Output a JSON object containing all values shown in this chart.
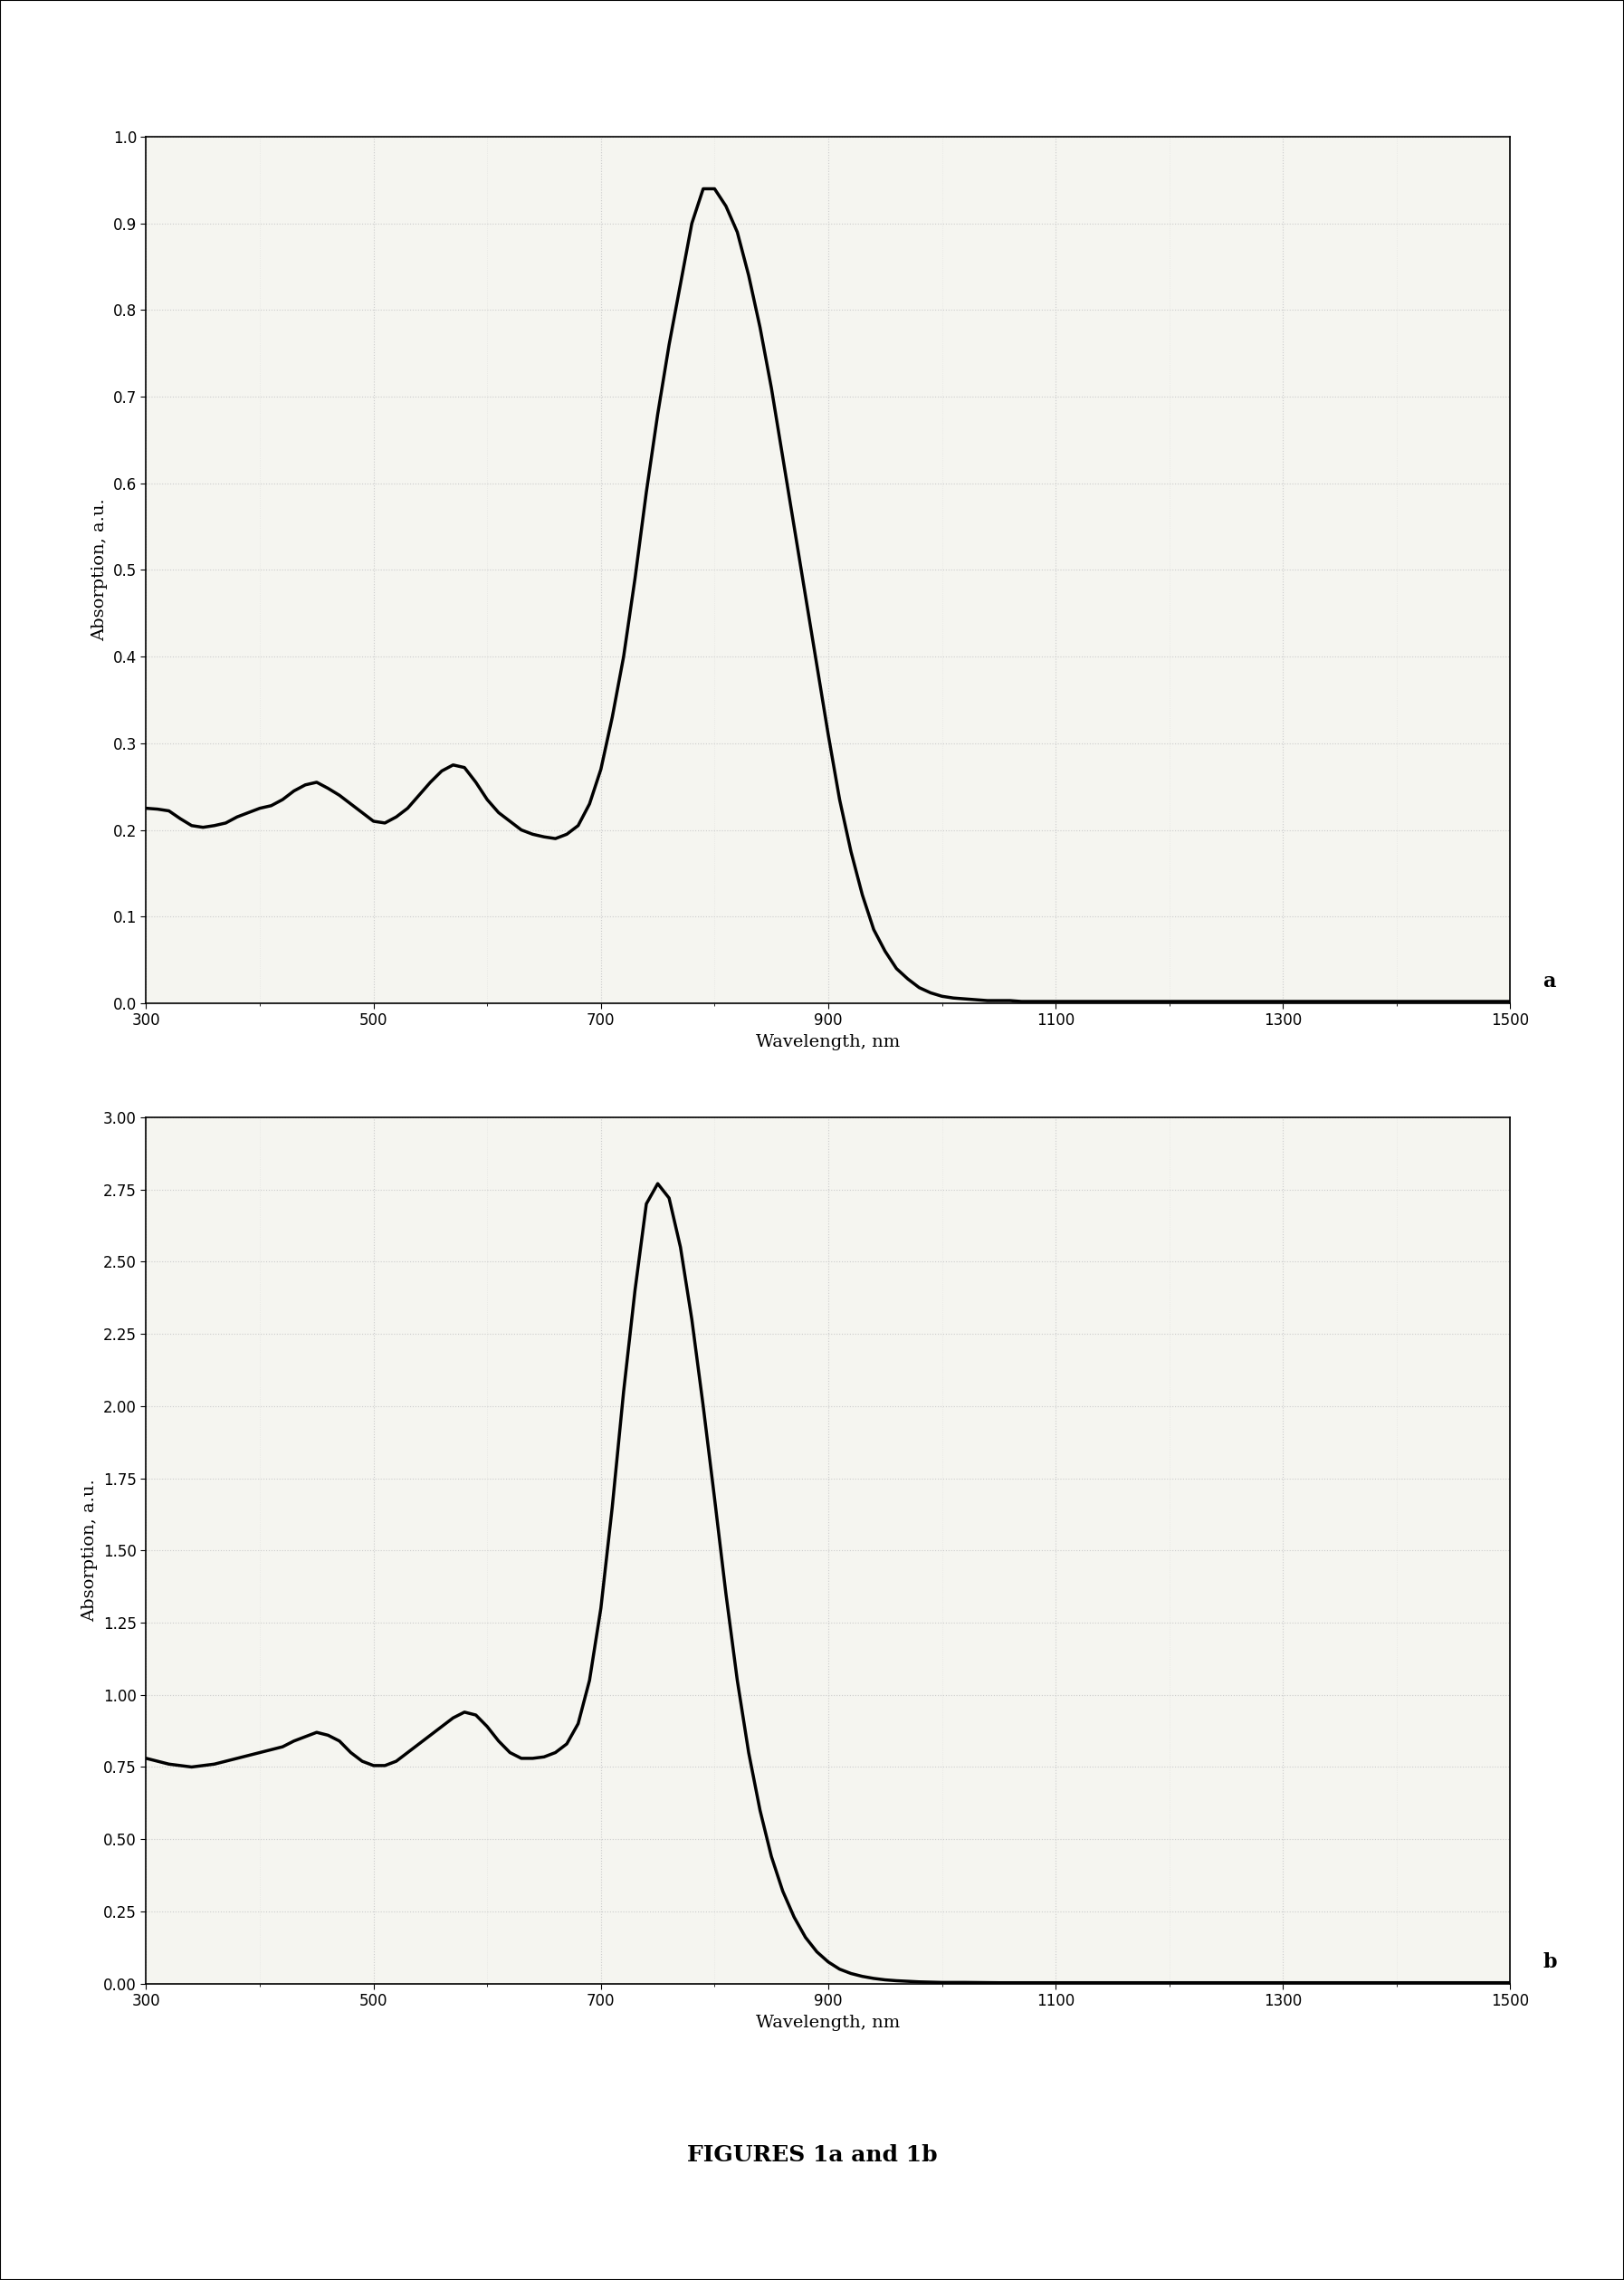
{
  "fig_width": 17.94,
  "fig_height": 25.18,
  "background_color": "#ffffff",
  "plot_bg_color": "#f5f5f0",
  "grid_color": "#cccccc",
  "line_color": "#000000",
  "line_width": 2.5,
  "figure_label": "FIGURES 1a and 1b",
  "label_a": "a",
  "label_b": "b",
  "chart1": {
    "xlabel": "Wavelength, nm",
    "ylabel": "Absorption, a.u.",
    "xlim": [
      300,
      1500
    ],
    "ylim": [
      0,
      1
    ],
    "xticks": [
      300,
      500,
      700,
      900,
      1100,
      1300,
      1500
    ],
    "yticks": [
      0,
      0.1,
      0.2,
      0.3,
      0.4,
      0.5,
      0.6,
      0.7,
      0.8,
      0.9,
      1.0
    ],
    "x": [
      300,
      310,
      320,
      330,
      340,
      350,
      360,
      370,
      380,
      390,
      400,
      410,
      420,
      430,
      440,
      450,
      460,
      470,
      480,
      490,
      500,
      510,
      520,
      530,
      540,
      550,
      560,
      570,
      580,
      590,
      600,
      610,
      620,
      630,
      640,
      650,
      660,
      670,
      680,
      690,
      700,
      710,
      720,
      730,
      740,
      750,
      760,
      770,
      780,
      790,
      800,
      810,
      820,
      830,
      840,
      850,
      860,
      870,
      880,
      890,
      900,
      910,
      920,
      930,
      940,
      950,
      960,
      970,
      980,
      990,
      1000,
      1010,
      1020,
      1030,
      1040,
      1050,
      1060,
      1070,
      1080,
      1090,
      1100,
      1110,
      1120,
      1130,
      1140,
      1150,
      1200,
      1300,
      1400,
      1500
    ],
    "y": [
      0.225,
      0.224,
      0.222,
      0.213,
      0.205,
      0.203,
      0.205,
      0.208,
      0.215,
      0.22,
      0.225,
      0.228,
      0.235,
      0.245,
      0.252,
      0.255,
      0.248,
      0.24,
      0.23,
      0.22,
      0.21,
      0.208,
      0.215,
      0.225,
      0.24,
      0.255,
      0.268,
      0.275,
      0.272,
      0.255,
      0.235,
      0.22,
      0.21,
      0.2,
      0.195,
      0.192,
      0.19,
      0.195,
      0.205,
      0.23,
      0.27,
      0.33,
      0.4,
      0.49,
      0.59,
      0.68,
      0.76,
      0.83,
      0.9,
      0.94,
      0.94,
      0.92,
      0.89,
      0.84,
      0.78,
      0.71,
      0.63,
      0.55,
      0.47,
      0.39,
      0.31,
      0.235,
      0.175,
      0.125,
      0.085,
      0.06,
      0.04,
      0.028,
      0.018,
      0.012,
      0.008,
      0.006,
      0.005,
      0.004,
      0.003,
      0.003,
      0.003,
      0.002,
      0.002,
      0.002,
      0.002,
      0.002,
      0.002,
      0.002,
      0.002,
      0.002,
      0.002,
      0.002,
      0.002,
      0.002
    ]
  },
  "chart2": {
    "xlabel": "Wavelength, nm",
    "ylabel": "Absorption, a.u.",
    "xlim": [
      300,
      1500
    ],
    "ylim": [
      0,
      3
    ],
    "xticks": [
      300,
      500,
      700,
      900,
      1100,
      1300,
      1500
    ],
    "yticks": [
      0,
      0.25,
      0.5,
      0.75,
      1.0,
      1.25,
      1.5,
      1.75,
      2.0,
      2.25,
      2.5,
      2.75,
      3.0
    ],
    "x": [
      300,
      310,
      320,
      330,
      340,
      350,
      360,
      370,
      380,
      390,
      400,
      410,
      420,
      430,
      440,
      450,
      460,
      470,
      480,
      490,
      500,
      510,
      520,
      530,
      540,
      550,
      560,
      570,
      580,
      590,
      600,
      610,
      620,
      630,
      640,
      650,
      660,
      670,
      680,
      690,
      700,
      710,
      720,
      730,
      740,
      750,
      760,
      770,
      780,
      790,
      800,
      810,
      820,
      830,
      840,
      850,
      860,
      870,
      880,
      890,
      900,
      910,
      920,
      930,
      940,
      950,
      960,
      970,
      980,
      990,
      1000,
      1020,
      1050,
      1100,
      1200,
      1300,
      1400,
      1500
    ],
    "y": [
      0.78,
      0.77,
      0.76,
      0.755,
      0.75,
      0.755,
      0.76,
      0.77,
      0.78,
      0.79,
      0.8,
      0.81,
      0.82,
      0.84,
      0.855,
      0.87,
      0.86,
      0.84,
      0.8,
      0.77,
      0.755,
      0.755,
      0.77,
      0.8,
      0.83,
      0.86,
      0.89,
      0.92,
      0.94,
      0.93,
      0.89,
      0.84,
      0.8,
      0.78,
      0.78,
      0.785,
      0.8,
      0.83,
      0.9,
      1.05,
      1.3,
      1.65,
      2.05,
      2.4,
      2.7,
      2.77,
      2.72,
      2.55,
      2.3,
      2.0,
      1.68,
      1.35,
      1.05,
      0.8,
      0.6,
      0.44,
      0.32,
      0.23,
      0.16,
      0.11,
      0.075,
      0.05,
      0.035,
      0.025,
      0.018,
      0.013,
      0.01,
      0.008,
      0.006,
      0.005,
      0.004,
      0.004,
      0.003,
      0.003,
      0.003,
      0.003,
      0.003,
      0.003
    ]
  }
}
